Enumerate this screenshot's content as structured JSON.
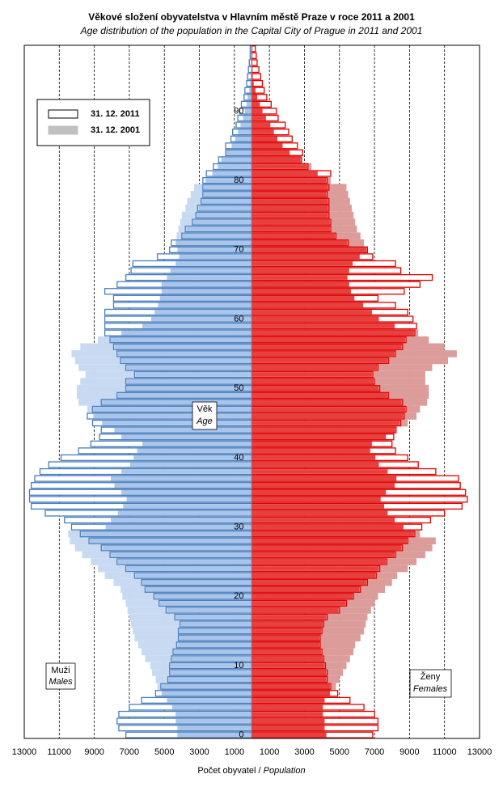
{
  "chart_data": {
    "type": "pyramid",
    "title": "Věkové složení obyvatelstva  v Hlavním městě  Praze v roce 2011 a 2001",
    "subtitle": "Age distribution of the population  in the Capital City of Prague in 2011  and 2001",
    "x_label": "Počet obyvatel /",
    "x_label_en": "Population",
    "axis_label": "Věk",
    "axis_label_en": "Age",
    "males_label": "Muži",
    "males_label_en": "Males",
    "females_label": "Ženy",
    "females_label_en": "Females",
    "categories": [
      0,
      null,
      null,
      null,
      null,
      null,
      null,
      null,
      null,
      null,
      10,
      null,
      null,
      null,
      null,
      null,
      null,
      null,
      null,
      null,
      20,
      null,
      null,
      null,
      null,
      null,
      null,
      null,
      null,
      null,
      30,
      null,
      null,
      null,
      null,
      null,
      null,
      null,
      null,
      null,
      40,
      null,
      null,
      null,
      null,
      null,
      null,
      null,
      null,
      null,
      50,
      null,
      null,
      null,
      null,
      null,
      null,
      null,
      null,
      null,
      60,
      null,
      null,
      null,
      null,
      null,
      null,
      null,
      null,
      null,
      70,
      null,
      null,
      null,
      null,
      null,
      null,
      null,
      null,
      null,
      80,
      null,
      null,
      null,
      null,
      null,
      null,
      null,
      null,
      null,
      90,
      null,
      null,
      null,
      null,
      null,
      null,
      null,
      null,
      null
    ],
    "series": [
      {
        "name": "31. 12. 2011",
        "legend_color": "#000000",
        "male_color": "#4a7ebb",
        "female_color": "#e00000",
        "male_fill": "#aac5ec",
        "female_fill": "#e8403e",
        "males": [
          7200,
          7600,
          7700,
          7600,
          7000,
          6300,
          5500,
          5200,
          4800,
          4700,
          4700,
          4600,
          4500,
          4300,
          4200,
          4200,
          4100,
          4400,
          4900,
          5300,
          5600,
          6100,
          6300,
          6700,
          7200,
          7700,
          8100,
          8600,
          9300,
          9800,
          10300,
          10700,
          11800,
          12600,
          12700,
          12700,
          12600,
          12400,
          12100,
          11600,
          10900,
          9900,
          9200,
          8700,
          8600,
          9100,
          9400,
          9100,
          8600,
          7700,
          7200,
          7200,
          6700,
          7200,
          7500,
          7700,
          7900,
          8100,
          8400,
          8400,
          8400,
          8400,
          7900,
          7900,
          8400,
          7700,
          7200,
          6900,
          6800,
          5400,
          4700,
          4600,
          4000,
          3800,
          3400,
          3200,
          3100,
          2900,
          2800,
          2800,
          2800,
          2600,
          2200,
          1900,
          1500,
          1500,
          1200,
          1100,
          900,
          800,
          700,
          600,
          450,
          400,
          300,
          250,
          200,
          150,
          100,
          100
        ],
        "females": [
          6900,
          7200,
          7200,
          7000,
          6400,
          5600,
          4900,
          4500,
          4300,
          4300,
          4200,
          4100,
          4000,
          3900,
          3900,
          4000,
          4100,
          4300,
          5000,
          5400,
          5800,
          6200,
          6600,
          7100,
          7300,
          7700,
          8200,
          8600,
          8900,
          9300,
          9700,
          10200,
          11000,
          12000,
          12300,
          12200,
          11900,
          11800,
          10500,
          9500,
          8900,
          8200,
          8000,
          8100,
          8200,
          8500,
          8700,
          8800,
          8600,
          7800,
          7300,
          7000,
          6900,
          7200,
          7800,
          8200,
          8600,
          8800,
          9300,
          9400,
          9200,
          8900,
          8200,
          7200,
          8700,
          9600,
          10300,
          8500,
          8200,
          6900,
          6600,
          5500,
          4800,
          4500,
          4500,
          4400,
          4400,
          4400,
          4300,
          4400,
          4300,
          4500,
          3200,
          2800,
          2900,
          2600,
          2300,
          2100,
          1900,
          1500,
          1400,
          1100,
          850,
          700,
          600,
          500,
          400,
          300,
          250,
          200
        ]
      },
      {
        "name": "31. 12. 2001",
        "legend_color": "#c0c0c0",
        "male_color": "#c8daf2",
        "female_color": "#db9c9a",
        "males": [
          4300,
          4300,
          4400,
          4400,
          4600,
          4900,
          5200,
          5400,
          5500,
          5700,
          5800,
          6100,
          6300,
          6500,
          6700,
          6800,
          6900,
          7000,
          7100,
          7200,
          7400,
          7500,
          7900,
          8400,
          8800,
          9200,
          9700,
          10100,
          10400,
          10500,
          8400,
          8100,
          7700,
          7400,
          7200,
          7500,
          7900,
          8100,
          7500,
          7000,
          6800,
          6600,
          6300,
          7500,
          7900,
          8600,
          9100,
          9400,
          9900,
          10000,
          10000,
          9800,
          9500,
          9900,
          10100,
          10300,
          9800,
          8800,
          7500,
          6300,
          5800,
          5600,
          5400,
          5300,
          5200,
          5200,
          4900,
          4700,
          4400,
          4200,
          4300,
          4400,
          4300,
          4200,
          4100,
          4000,
          3800,
          3700,
          3500,
          3300,
          2700,
          2300,
          2000,
          1800,
          1500,
          1200,
          1000,
          850,
          700,
          550,
          450,
          350,
          300,
          200,
          150,
          100,
          50,
          50,
          30,
          20
        ],
        "females": [
          4300,
          4200,
          4200,
          4100,
          4100,
          4200,
          4500,
          4800,
          5000,
          5200,
          5400,
          5600,
          5800,
          5900,
          6200,
          6400,
          6500,
          6600,
          6800,
          7000,
          7200,
          7600,
          8000,
          8300,
          8900,
          9400,
          9900,
          10300,
          10500,
          9600,
          8700,
          8200,
          7800,
          7600,
          7400,
          7700,
          8200,
          8300,
          7800,
          7300,
          7100,
          6800,
          6900,
          7700,
          8300,
          8900,
          9400,
          9600,
          10000,
          10100,
          10100,
          9900,
          9900,
          10300,
          11200,
          11700,
          11000,
          10100,
          9500,
          8200,
          7300,
          6900,
          6400,
          5900,
          5700,
          5600,
          5500,
          5600,
          5800,
          6200,
          6600,
          6400,
          6200,
          6000,
          5900,
          5800,
          5700,
          5600,
          5500,
          5400,
          4500,
          3800,
          3400,
          2900,
          2200,
          1800,
          1500,
          1300,
          1100,
          850,
          650,
          500,
          350,
          250,
          150,
          100,
          80,
          50,
          30,
          20
        ]
      }
    ],
    "xlim": [
      -13000,
      13000
    ],
    "xticks": [
      {
        "value": -13000,
        "label": "13000"
      },
      {
        "value": -11000,
        "label": "11000"
      },
      {
        "value": -9000,
        "label": "9000"
      },
      {
        "value": -7000,
        "label": "7000"
      },
      {
        "value": -5000,
        "label": "5000"
      },
      {
        "value": -3000,
        "label": "3000"
      },
      {
        "value": -1000,
        "label": "1000"
      },
      1000,
      3000,
      5000,
      7000,
      9000,
      11000,
      13000
    ],
    "grid": true
  }
}
